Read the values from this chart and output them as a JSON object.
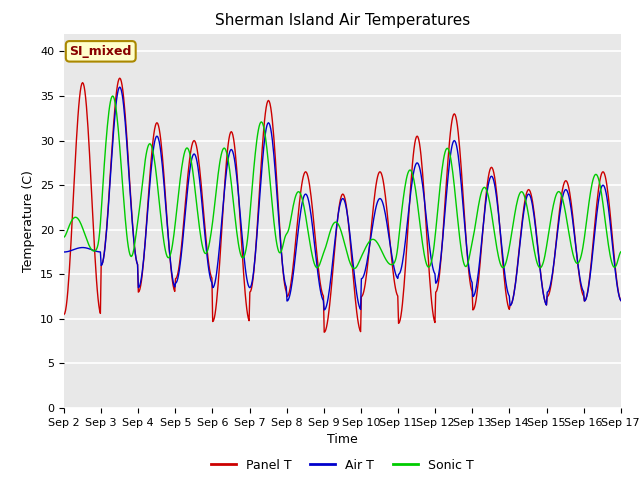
{
  "title": "Sherman Island Air Temperatures",
  "xlabel": "Time",
  "ylabel": "Temperature (C)",
  "annotation": "SI_mixed",
  "ylim": [
    0,
    42
  ],
  "yticks": [
    0,
    5,
    10,
    15,
    20,
    25,
    30,
    35,
    40
  ],
  "legend_labels": [
    "Panel T",
    "Air T",
    "Sonic T"
  ],
  "line_colors": [
    "#cc0000",
    "#0000cc",
    "#00cc00"
  ],
  "bg_color": "#e8e8e8",
  "title_fontsize": 11,
  "label_fontsize": 9,
  "tick_fontsize": 8,
  "annotation_bg": "#ffffcc",
  "annotation_border": "#aa8800",
  "annotation_text_color": "#880000",
  "panel_peaks": [
    36.5,
    37.0,
    32.0,
    30.0,
    31.0,
    34.5,
    26.5,
    24.0,
    26.5,
    30.5,
    33.0,
    27.0,
    24.5,
    25.5,
    26.5
  ],
  "panel_troughs": [
    10.5,
    16.0,
    13.0,
    14.5,
    9.7,
    13.0,
    12.5,
    8.5,
    12.5,
    9.5,
    13.0,
    11.0,
    11.5,
    12.5,
    12.0
  ],
  "air_peaks": [
    18.0,
    36.0,
    30.5,
    28.5,
    29.0,
    32.0,
    24.0,
    23.5,
    23.5,
    27.5,
    30.0,
    26.0,
    24.0,
    24.5,
    25.0
  ],
  "air_troughs": [
    17.5,
    16.0,
    13.5,
    14.0,
    13.5,
    13.5,
    12.0,
    11.0,
    14.5,
    15.0,
    14.0,
    12.5,
    11.5,
    13.0,
    12.0
  ],
  "sonic_peaks": [
    21.5,
    35.5,
    30.0,
    29.5,
    29.5,
    32.5,
    24.5,
    21.0,
    19.0,
    27.0,
    29.5,
    25.0,
    24.5,
    24.5,
    26.5
  ],
  "sonic_troughs": [
    17.5,
    16.5,
    16.5,
    17.0,
    16.5,
    17.0,
    15.5,
    15.5,
    16.0,
    15.5,
    15.5,
    15.5,
    15.5,
    16.0,
    15.5
  ],
  "n_days": 15,
  "n_per_day": 48,
  "panel_phase": 0.0,
  "air_phase": 0.0,
  "sonic_phase": 1.2
}
